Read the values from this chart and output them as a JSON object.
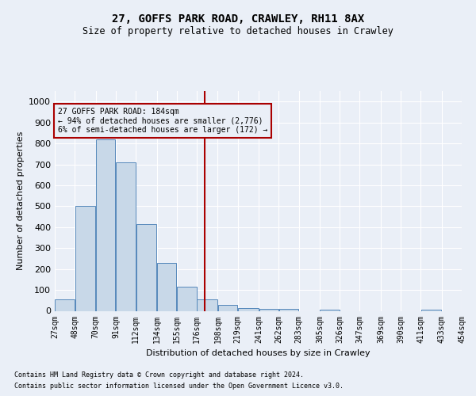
{
  "title1": "27, GOFFS PARK ROAD, CRAWLEY, RH11 8AX",
  "title2": "Size of property relative to detached houses in Crawley",
  "xlabel": "Distribution of detached houses by size in Crawley",
  "ylabel": "Number of detached properties",
  "footnote1": "Contains HM Land Registry data © Crown copyright and database right 2024.",
  "footnote2": "Contains public sector information licensed under the Open Government Licence v3.0.",
  "annotation_line1": "27 GOFFS PARK ROAD: 184sqm",
  "annotation_line2": "← 94% of detached houses are smaller (2,776)",
  "annotation_line3": "6% of semi-detached houses are larger (172) →",
  "property_size": 184,
  "bin_edges": [
    27,
    48,
    70,
    91,
    112,
    134,
    155,
    176,
    198,
    219,
    241,
    262,
    283,
    305,
    326,
    347,
    369,
    390,
    411,
    433,
    454
  ],
  "bar_heights": [
    55,
    500,
    820,
    710,
    415,
    230,
    115,
    55,
    30,
    15,
    10,
    10,
    0,
    5,
    0,
    0,
    0,
    0,
    5,
    0
  ],
  "bar_color": "#c8d8e8",
  "bar_edge_color": "#5588bb",
  "vline_color": "#aa0000",
  "annotation_box_color": "#aa0000",
  "background_color": "#eaeff7",
  "grid_color": "#ffffff",
  "ylim": [
    0,
    1050
  ],
  "yticks": [
    0,
    100,
    200,
    300,
    400,
    500,
    600,
    700,
    800,
    900,
    1000
  ]
}
